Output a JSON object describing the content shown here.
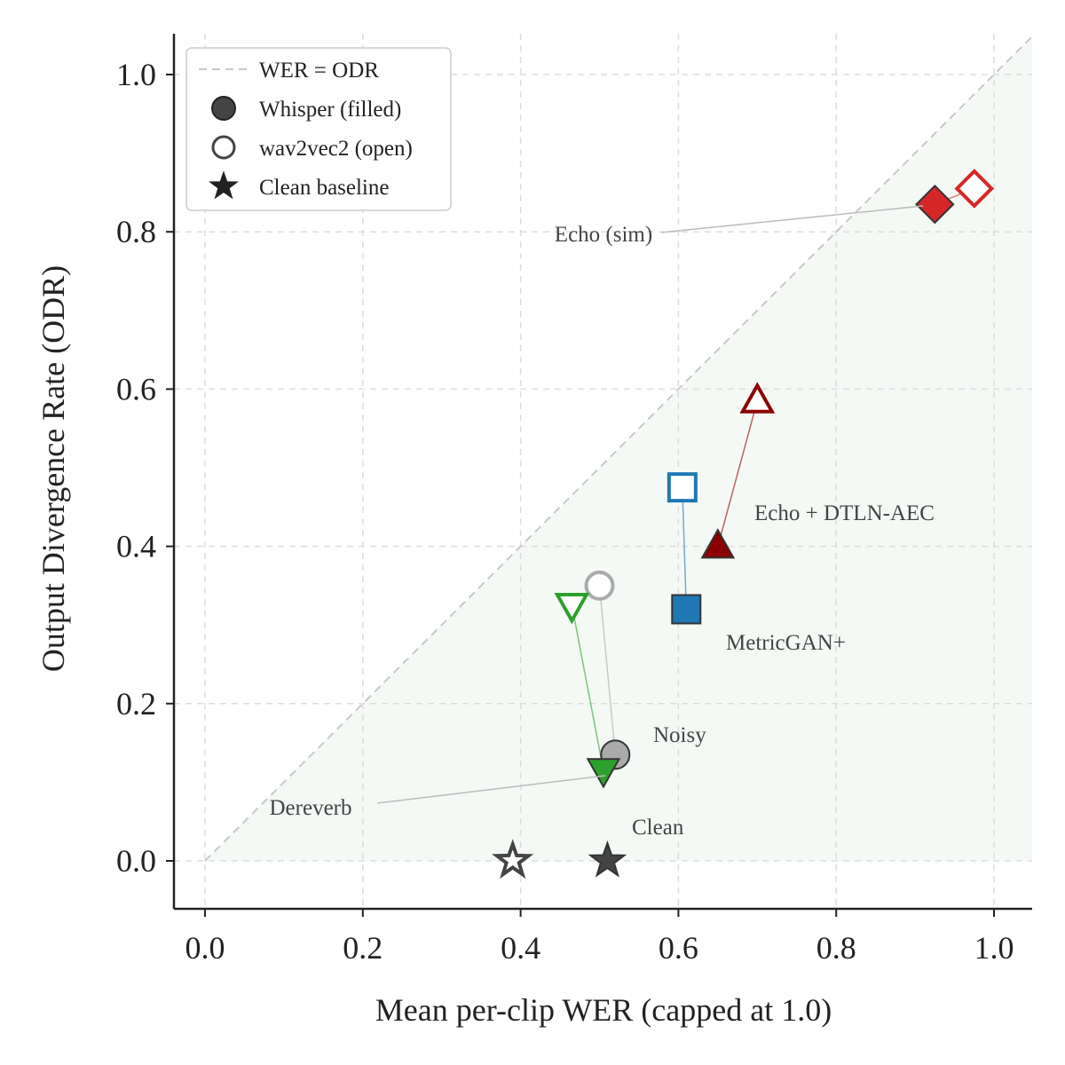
{
  "chart_data": {
    "type": "scatter",
    "xlabel": "Mean per-clip WER (capped at 1.0)",
    "ylabel": "Output Divergence Rate (ODR)",
    "xlim": [
      -0.04,
      1.05
    ],
    "ylim": [
      -0.06,
      1.05
    ],
    "xticks": [
      "0.0",
      "0.2",
      "0.4",
      "0.6",
      "0.8",
      "1.0"
    ],
    "yticks": [
      "0.0",
      "0.2",
      "0.4",
      "0.6",
      "0.8",
      "1.0"
    ],
    "grid": true,
    "diagonal_label": "WER = ODR",
    "legend": {
      "position": "top-left",
      "entries": [
        "WER = ODR",
        "Whisper (filled)",
        "wav2vec2 (open)",
        "Clean baseline"
      ]
    },
    "conditions": [
      {
        "name": "Clean",
        "color": "#444444",
        "marker": "star",
        "whisper": [
          0.51,
          0.0
        ],
        "wav2vec2": [
          0.39,
          0.0
        ]
      },
      {
        "name": "Noisy",
        "color": "#aaaaaa",
        "marker": "circle",
        "whisper": [
          0.52,
          0.135
        ],
        "wav2vec2": [
          0.5,
          0.35
        ]
      },
      {
        "name": "Dereverb",
        "color": "#2ca02c",
        "marker": "triangle-down",
        "whisper": [
          0.505,
          0.115
        ],
        "wav2vec2": [
          0.465,
          0.325
        ]
      },
      {
        "name": "MetricGAN+",
        "color": "#1f77b4",
        "marker": "square",
        "whisper": [
          0.61,
          0.32
        ],
        "wav2vec2": [
          0.605,
          0.475
        ]
      },
      {
        "name": "Echo + DTLN-AEC",
        "color": "#8b0000",
        "marker": "triangle-up",
        "whisper": [
          0.65,
          0.4
        ],
        "wav2vec2": [
          0.7,
          0.585
        ]
      },
      {
        "name": "Echo (sim)",
        "color": "#d62728",
        "marker": "diamond",
        "whisper": [
          0.925,
          0.835
        ],
        "wav2vec2": [
          0.975,
          0.855
        ]
      }
    ]
  }
}
